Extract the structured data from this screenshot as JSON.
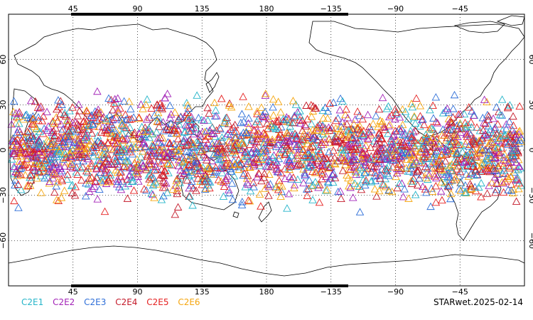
{
  "map": {
    "projection": "equirectangular",
    "center_lon": 180,
    "lon_ticks_top": [
      "45",
      "90",
      "135",
      "180",
      "−135",
      "−90",
      "−45"
    ],
    "lon_ticks_bottom": [
      "45",
      "90",
      "135",
      "180",
      "−135",
      "−90",
      "−45"
    ],
    "lat_ticks_left": [
      "60",
      "30",
      "0",
      "−30",
      "−60"
    ],
    "lat_ticks_right": [
      "60",
      "30",
      "0",
      "−30",
      "−60"
    ],
    "gridlines": true,
    "grid_style": "dotted",
    "coastline_color": "#000000"
  },
  "chart_data": {
    "type": "scatter",
    "marker": "open-triangle",
    "lat_range": [
      -45,
      45
    ],
    "series": [
      {
        "name": "C2E1",
        "color": "#26b5c9"
      },
      {
        "name": "C2E2",
        "color": "#a322b7"
      },
      {
        "name": "C2E3",
        "color": "#2f6fd8"
      },
      {
        "name": "C2E4",
        "color": "#c41a2a"
      },
      {
        "name": "C2E5",
        "color": "#e52020"
      },
      {
        "name": "C2E6",
        "color": "#f5a60f"
      }
    ]
  },
  "legend": {
    "items": [
      {
        "label": "C2E1",
        "color": "#26b5c9"
      },
      {
        "label": "C2E2",
        "color": "#a322b7"
      },
      {
        "label": "C2E3",
        "color": "#2f6fd8"
      },
      {
        "label": "C2E4",
        "color": "#c41a2a"
      },
      {
        "label": "C2E5",
        "color": "#e52020"
      },
      {
        "label": "C2E6",
        "color": "#f5a60f"
      }
    ]
  },
  "footer": {
    "stamp": "STARwet.2025-02-14"
  }
}
